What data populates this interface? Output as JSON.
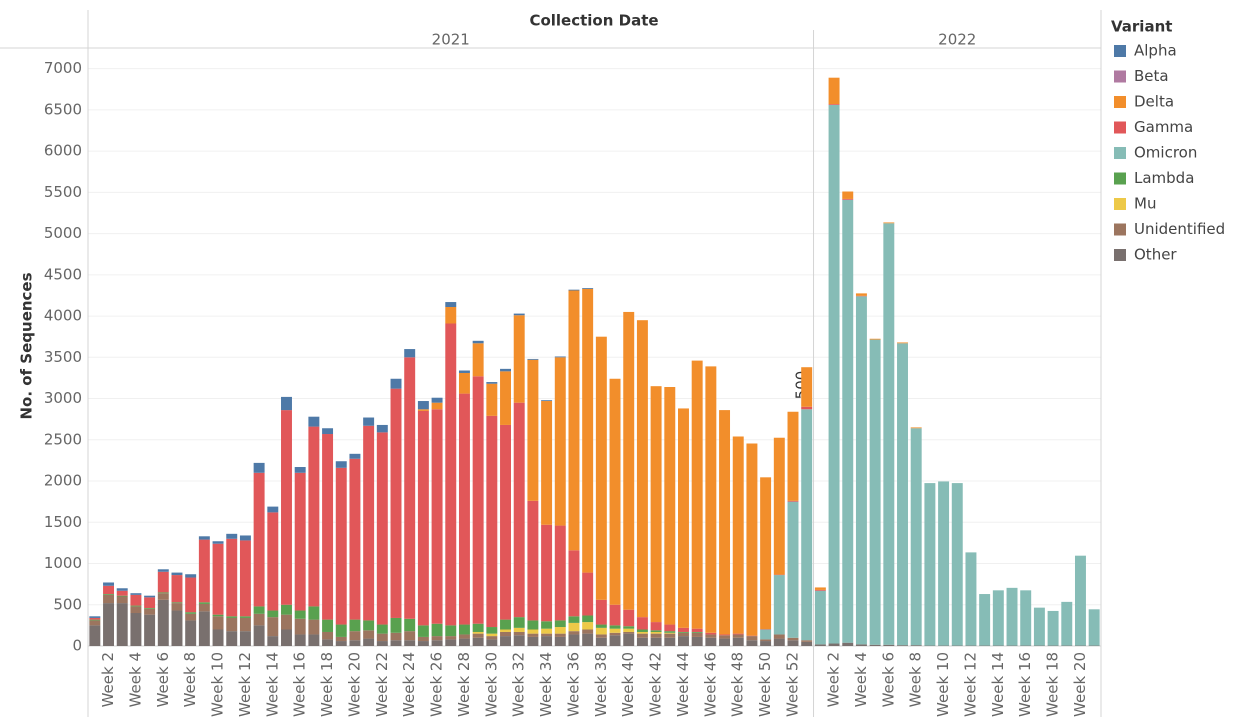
{
  "chart_data": {
    "type": "bar",
    "stacked": true,
    "title": "Collection Date",
    "y_label": "No. of Sequences",
    "legend_title": "Variant",
    "legend_position": "right",
    "annotation": "500",
    "ylim": [
      0,
      7250
    ],
    "yticks": [
      0,
      500,
      1000,
      1500,
      2000,
      2500,
      3000,
      3500,
      4000,
      4500,
      5000,
      5500,
      6000,
      6500,
      7000
    ],
    "grid": true,
    "groups": [
      {
        "name": "2021",
        "categories": [
          null,
          "Week 2",
          null,
          "Week 4",
          null,
          "Week 6",
          null,
          "Week 8",
          null,
          "Week 10",
          null,
          "Week 12",
          null,
          "Week 14",
          null,
          "Week 16",
          null,
          "Week 18",
          null,
          "Week 20",
          null,
          "Week 22",
          null,
          "Week 24",
          null,
          "Week 26",
          null,
          "Week 28",
          null,
          "Week 30",
          null,
          "Week 32",
          null,
          "Week 34",
          null,
          "Week 36",
          null,
          "Week 38",
          null,
          "Week 40",
          null,
          "Week 42",
          null,
          "Week 44",
          null,
          "Week 46",
          null,
          "Week 48",
          null,
          "Week 50",
          null,
          "Week 52",
          null
        ]
      },
      {
        "name": "2022",
        "categories": [
          null,
          "Week 2",
          null,
          "Week 4",
          null,
          "Week 6",
          null,
          "Week 8",
          null,
          "Week 10",
          null,
          "Week 12",
          null,
          "Week 14",
          null,
          "Week 16",
          null,
          "Week 18",
          null,
          "Week 20",
          null
        ]
      }
    ],
    "series": [
      {
        "name": "Alpha",
        "color": "#4e79a7",
        "values": [
          20,
          40,
          30,
          20,
          20,
          30,
          30,
          40,
          40,
          30,
          60,
          60,
          120,
          70,
          160,
          70,
          120,
          70,
          80,
          60,
          100,
          90,
          120,
          100,
          100,
          60,
          60,
          30,
          30,
          20,
          30,
          20,
          10,
          10,
          10,
          10,
          10,
          0,
          0,
          0,
          0,
          0,
          0,
          0,
          0,
          0,
          0,
          0,
          0,
          0,
          0,
          0,
          0,
          0,
          0,
          0,
          0,
          0,
          0,
          0,
          0,
          0,
          0,
          0,
          0,
          0,
          0,
          0,
          0,
          0,
          0,
          0,
          0,
          0
        ]
      },
      {
        "name": "Beta",
        "color": "#b07aa1",
        "values": [
          0,
          0,
          0,
          0,
          0,
          0,
          0,
          0,
          0,
          0,
          0,
          0,
          0,
          0,
          0,
          0,
          0,
          0,
          0,
          0,
          0,
          0,
          0,
          0,
          0,
          0,
          0,
          0,
          0,
          0,
          0,
          0,
          0,
          0,
          0,
          0,
          0,
          0,
          0,
          0,
          0,
          0,
          0,
          0,
          0,
          0,
          0,
          0,
          0,
          0,
          0,
          0,
          0,
          0,
          0,
          0,
          0,
          0,
          0,
          0,
          0,
          0,
          0,
          0,
          0,
          0,
          0,
          0,
          0,
          0,
          0,
          0,
          0,
          0
        ]
      },
      {
        "name": "Delta",
        "color": "#f28e2b",
        "values": [
          0,
          0,
          0,
          0,
          0,
          0,
          0,
          0,
          0,
          0,
          0,
          0,
          0,
          0,
          0,
          0,
          0,
          0,
          0,
          0,
          0,
          0,
          0,
          0,
          20,
          80,
          200,
          250,
          400,
          390,
          650,
          1060,
          1710,
          1500,
          2040,
          3150,
          3440,
          3190,
          2740,
          3610,
          3600,
          2860,
          2880,
          2660,
          3250,
          3230,
          2720,
          2390,
          2330,
          1840,
          1660,
          1080,
          480,
          30,
          320,
          90,
          30,
          10,
          10,
          10,
          10,
          0,
          0,
          0,
          0,
          0,
          0,
          0,
          0,
          0,
          0,
          0,
          0,
          0
        ]
      },
      {
        "name": "Gamma",
        "color": "#e15759",
        "values": [
          20,
          100,
          60,
          130,
          130,
          250,
          330,
          420,
          760,
          860,
          940,
          920,
          1620,
          1190,
          2360,
          1670,
          2180,
          2250,
          1900,
          1950,
          2360,
          2330,
          2780,
          3170,
          2600,
          2600,
          3660,
          2800,
          3000,
          2560,
          2360,
          2600,
          1450,
          1170,
          1150,
          800,
          520,
          300,
          250,
          200,
          150,
          100,
          80,
          50,
          40,
          20,
          10,
          10,
          5,
          5,
          5,
          10,
          30,
          10,
          10,
          10,
          5,
          0,
          0,
          0,
          0,
          0,
          0,
          0,
          0,
          0,
          0,
          0,
          0,
          0,
          0,
          0,
          0
        ]
      },
      {
        "name": "Omicron",
        "color": "#86bcb6",
        "values": [
          0,
          0,
          0,
          0,
          0,
          0,
          0,
          0,
          0,
          0,
          0,
          0,
          0,
          0,
          0,
          0,
          0,
          0,
          0,
          0,
          0,
          0,
          0,
          0,
          0,
          0,
          0,
          0,
          0,
          0,
          0,
          0,
          0,
          0,
          0,
          0,
          0,
          0,
          0,
          0,
          0,
          0,
          0,
          0,
          0,
          0,
          0,
          0,
          0,
          120,
          720,
          1650,
          2800,
          650,
          6530,
          5370,
          4220,
          3700,
          5110,
          3660,
          2630,
          1970,
          1990,
          1970,
          1130,
          625,
          670,
          700,
          670,
          460,
          420,
          530,
          1090,
          440
        ]
      },
      {
        "name": "Lambda",
        "color": "#59a14f",
        "values": [
          10,
          10,
          10,
          10,
          10,
          10,
          10,
          20,
          20,
          20,
          20,
          20,
          90,
          80,
          120,
          100,
          160,
          150,
          150,
          140,
          120,
          110,
          180,
          150,
          140,
          150,
          130,
          120,
          100,
          80,
          120,
          130,
          110,
          90,
          80,
          80,
          80,
          40,
          40,
          30,
          30,
          20,
          20,
          10,
          10,
          0,
          0,
          0,
          0,
          0,
          0,
          0,
          0,
          0,
          0,
          0,
          0,
          0,
          0,
          0,
          0,
          0,
          0,
          0,
          0,
          0,
          0,
          0,
          0,
          0,
          0,
          0,
          0,
          0
        ]
      },
      {
        "name": "Mu",
        "color": "#edc948",
        "values": [
          0,
          0,
          0,
          0,
          0,
          0,
          0,
          0,
          0,
          0,
          0,
          0,
          0,
          0,
          0,
          0,
          0,
          0,
          0,
          0,
          0,
          0,
          0,
          0,
          0,
          0,
          0,
          0,
          20,
          30,
          30,
          50,
          50,
          60,
          80,
          100,
          90,
          80,
          50,
          40,
          20,
          20,
          10,
          0,
          0,
          0,
          0,
          0,
          0,
          0,
          0,
          0,
          0,
          0,
          0,
          0,
          0,
          0,
          0,
          0,
          0,
          0,
          0,
          0,
          0,
          0,
          0,
          0,
          0,
          0,
          0,
          0,
          0,
          0
        ]
      },
      {
        "name": "Unidentified",
        "color": "#9c755f",
        "values": [
          60,
          100,
          80,
          80,
          70,
          80,
          90,
          80,
          90,
          160,
          160,
          160,
          140,
          230,
          180,
          190,
          180,
          90,
          50,
          110,
          100,
          90,
          90,
          110,
          50,
          50,
          40,
          50,
          50,
          40,
          50,
          40,
          40,
          30,
          40,
          40,
          50,
          40,
          30,
          20,
          50,
          50,
          50,
          40,
          50,
          40,
          40,
          40,
          50,
          20,
          50,
          30,
          20,
          0,
          0,
          0,
          0,
          0,
          0,
          0,
          0,
          0,
          0,
          0,
          0,
          0,
          0,
          0,
          0,
          0,
          0,
          0,
          0,
          0
        ]
      },
      {
        "name": "Other",
        "color": "#79706e",
        "values": [
          250,
          520,
          520,
          400,
          380,
          560,
          430,
          310,
          420,
          200,
          180,
          180,
          250,
          120,
          200,
          140,
          140,
          80,
          60,
          70,
          90,
          60,
          70,
          70,
          60,
          70,
          80,
          90,
          100,
          80,
          120,
          130,
          110,
          120,
          110,
          140,
          150,
          100,
          130,
          150,
          100,
          100,
          100,
          120,
          110,
          100,
          90,
          100,
          70,
          60,
          90,
          70,
          50,
          20,
          30,
          40,
          20,
          15,
          15,
          10,
          10,
          5,
          5,
          5,
          5,
          5,
          5,
          5,
          5,
          5,
          5,
          5,
          5,
          5
        ]
      }
    ]
  }
}
